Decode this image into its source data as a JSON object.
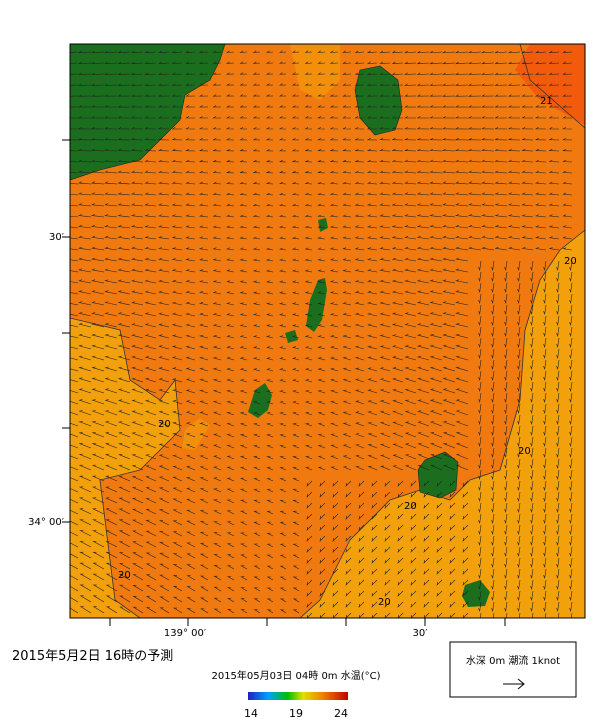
{
  "title": "2015年5月2日 16時の予測",
  "map": {
    "subtitle": "2015年05月03日 04時 0m 水温(°C)",
    "colorbar_labels": [
      "14",
      "19",
      "24"
    ],
    "lat_labels": [
      "30′",
      "34° 00′"
    ],
    "lon_labels": [
      "139° 00′",
      "30′"
    ],
    "contour_labels": [
      "21",
      "20",
      "20",
      "20",
      "20",
      "20",
      "20"
    ]
  },
  "legend": {
    "label": "水深 0m 潮流 1knot"
  }
}
